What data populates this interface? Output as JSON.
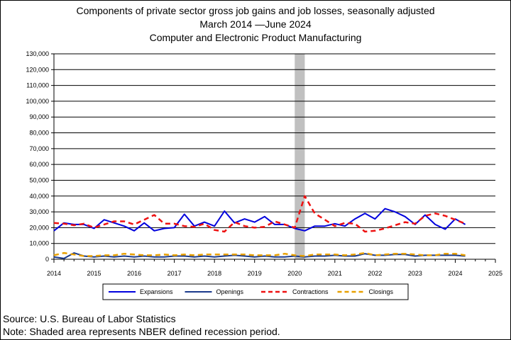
{
  "title_line1": "Components of private sector gross job gains and job losses, seasonally adjusted",
  "title_line2": "March 2014  —June 2024",
  "title_line3": "Computer and Electronic Product Manufacturing",
  "footer_source": "Source: U.S. Bureau of Labor Statistics",
  "footer_note": "Note: Shaded area represents NBER defined recession period.",
  "chart_data": {
    "type": "line",
    "title": "Components of private sector gross job gains and job losses, seasonally adjusted",
    "subtitle": "March 2014 —June 2024 — Computer and Electronic Product Manufacturing",
    "xlim": [
      2014,
      2025
    ],
    "ylim": [
      0,
      130000
    ],
    "x_ticks": [
      "2014",
      "2015",
      "2016",
      "2017",
      "2018",
      "2019",
      "2020",
      "2021",
      "2022",
      "2023",
      "2024",
      "2025"
    ],
    "y_ticks": [
      "0",
      "10,000",
      "20,000",
      "30,000",
      "40,000",
      "50,000",
      "60,000",
      "70,000",
      "80,000",
      "90,000",
      "100,000",
      "110,000",
      "120,000",
      "130,000"
    ],
    "grid": "horizontal",
    "legend_position": "bottom",
    "recession_shading": {
      "start": 2020.0,
      "end": 2020.25,
      "color": "#c0c0c0"
    },
    "x_quarters": [
      2014.0,
      2014.25,
      2014.5,
      2014.75,
      2015.0,
      2015.25,
      2015.5,
      2015.75,
      2016.0,
      2016.25,
      2016.5,
      2016.75,
      2017.0,
      2017.25,
      2017.5,
      2017.75,
      2018.0,
      2018.25,
      2018.5,
      2018.75,
      2019.0,
      2019.25,
      2019.5,
      2019.75,
      2020.0,
      2020.25,
      2020.5,
      2020.75,
      2021.0,
      2021.25,
      2021.5,
      2021.75,
      2022.0,
      2022.25,
      2022.5,
      2022.75,
      2023.0,
      2023.25,
      2023.5,
      2023.75,
      2024.0,
      2024.25
    ],
    "series": [
      {
        "name": "Expansions",
        "color": "#0000dd",
        "dash": "solid",
        "width": 2,
        "values": [
          18000,
          23000,
          22000,
          22000,
          19500,
          25000,
          23000,
          21000,
          18000,
          23000,
          18000,
          19500,
          20000,
          28500,
          21000,
          23500,
          21000,
          30500,
          23000,
          25500,
          23500,
          27000,
          22000,
          22000,
          19500,
          18000,
          21000,
          21000,
          22500,
          21000,
          25500,
          29000,
          25500,
          32000,
          30000,
          27000,
          22000,
          28000,
          22000,
          19000,
          25500,
          22000
        ]
      },
      {
        "name": "Openings",
        "color": "#1a3a8c",
        "dash": "solid",
        "width": 2,
        "values": [
          1500,
          500,
          4000,
          2000,
          1500,
          2000,
          1500,
          2000,
          1500,
          2000,
          1500,
          1500,
          2000,
          2000,
          1500,
          2000,
          1500,
          2000,
          2500,
          2000,
          1500,
          2000,
          1500,
          1500,
          2000,
          1500,
          2000,
          2000,
          2500,
          2000,
          2000,
          3500,
          2500,
          2500,
          3000,
          3000,
          2000,
          2500,
          2500,
          2500,
          2500,
          2000
        ]
      },
      {
        "name": "Contractions",
        "color": "#ee1111",
        "dash": "dashed",
        "width": 2.5,
        "values": [
          23000,
          22500,
          21500,
          22500,
          20000,
          22000,
          24000,
          24000,
          22000,
          25000,
          28000,
          22500,
          22500,
          21000,
          20500,
          22500,
          18500,
          17500,
          23500,
          21000,
          20000,
          20500,
          24000,
          22000,
          20000,
          40000,
          29000,
          25000,
          21000,
          23000,
          22500,
          17500,
          18000,
          19500,
          21500,
          23500,
          22500,
          27500,
          29000,
          27500,
          25000,
          22500
        ]
      },
      {
        "name": "Closings",
        "color": "#e8a000",
        "dash": "dashed",
        "width": 2.5,
        "values": [
          2500,
          4000,
          3000,
          2000,
          2000,
          2500,
          2500,
          3500,
          3000,
          2500,
          2500,
          3000,
          2500,
          3000,
          2500,
          3000,
          3000,
          3000,
          3000,
          3000,
          2500,
          2500,
          2500,
          3500,
          2500,
          2000,
          3000,
          3000,
          3000,
          2500,
          3000,
          4000,
          2500,
          3000,
          3500,
          3500,
          3000,
          2500,
          2500,
          3500,
          3500,
          2500
        ]
      }
    ]
  }
}
